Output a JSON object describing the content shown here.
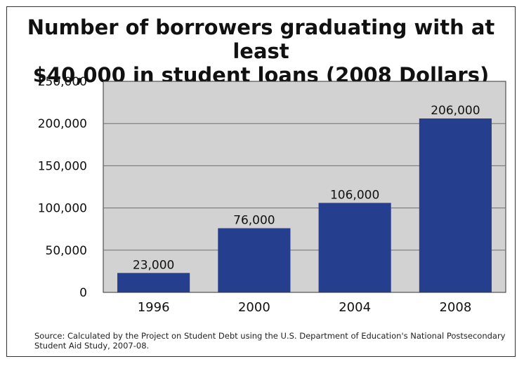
{
  "title_lines": [
    "Number of borrowers graduating with at least",
    "$40,000 in student loans (2008 Dollars)"
  ],
  "source": "Source: Calculated by the Project on Student Debt using the U.S. Department of Education's National Postsecondary Student Aid Study, 2007-08.",
  "chart_data": {
    "type": "bar",
    "title": "Number of borrowers graduating with at least $40,000 in student loans (2008 Dollars)",
    "categories": [
      "1996",
      "2000",
      "2004",
      "2008"
    ],
    "values": [
      23000,
      76000,
      106000,
      206000
    ],
    "value_labels": [
      "23,000",
      "76,000",
      "106,000",
      "206,000"
    ],
    "xlabel": "",
    "ylabel": "",
    "ylim": [
      0,
      250000
    ],
    "yticks": [
      0,
      50000,
      100000,
      150000,
      200000,
      250000
    ],
    "ytick_labels": [
      "0",
      "50,000",
      "100,000",
      "150,000",
      "200,000",
      "250,000"
    ],
    "grid": true,
    "legend": "none",
    "colors": {
      "bar": "#253f8e",
      "plot_bg": "#d2d2d2",
      "grid": "#6e6e6e"
    }
  }
}
